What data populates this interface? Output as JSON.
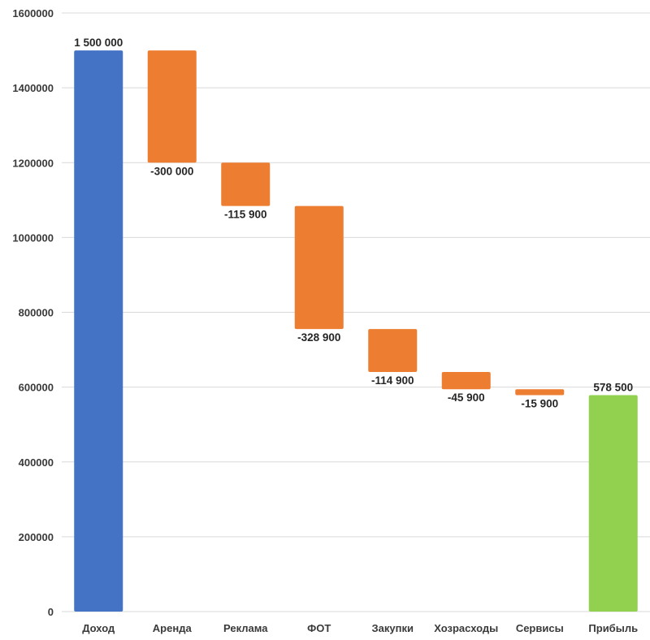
{
  "chart_data": {
    "type": "waterfall",
    "title": "",
    "xlabel": "",
    "ylabel": "",
    "ylim": [
      0,
      1600000
    ],
    "yticks": [
      0,
      200000,
      400000,
      600000,
      800000,
      1000000,
      1200000,
      1400000,
      1600000
    ],
    "grid": true,
    "categories": [
      "Доход",
      "Аренда",
      "Реклама",
      "ФОТ",
      "Закупки",
      "Хозрасходы",
      "Сервисы",
      "Прибыль"
    ],
    "values": [
      1500000,
      -300000,
      -115900,
      -328900,
      -114900,
      -45900,
      -15900,
      578500
    ],
    "kinds": [
      "start",
      "decrease",
      "decrease",
      "decrease",
      "decrease",
      "decrease",
      "decrease",
      "total"
    ],
    "data_labels": [
      "1 500 000",
      "-300 000",
      "-115 900",
      "-328 900",
      "-114 900",
      "-45 900",
      "-15 900",
      "578 500"
    ],
    "colors": {
      "start": "#4472c4",
      "decrease": "#ed7d31",
      "total": "#92d050",
      "grid": "#d9d9d9"
    }
  }
}
